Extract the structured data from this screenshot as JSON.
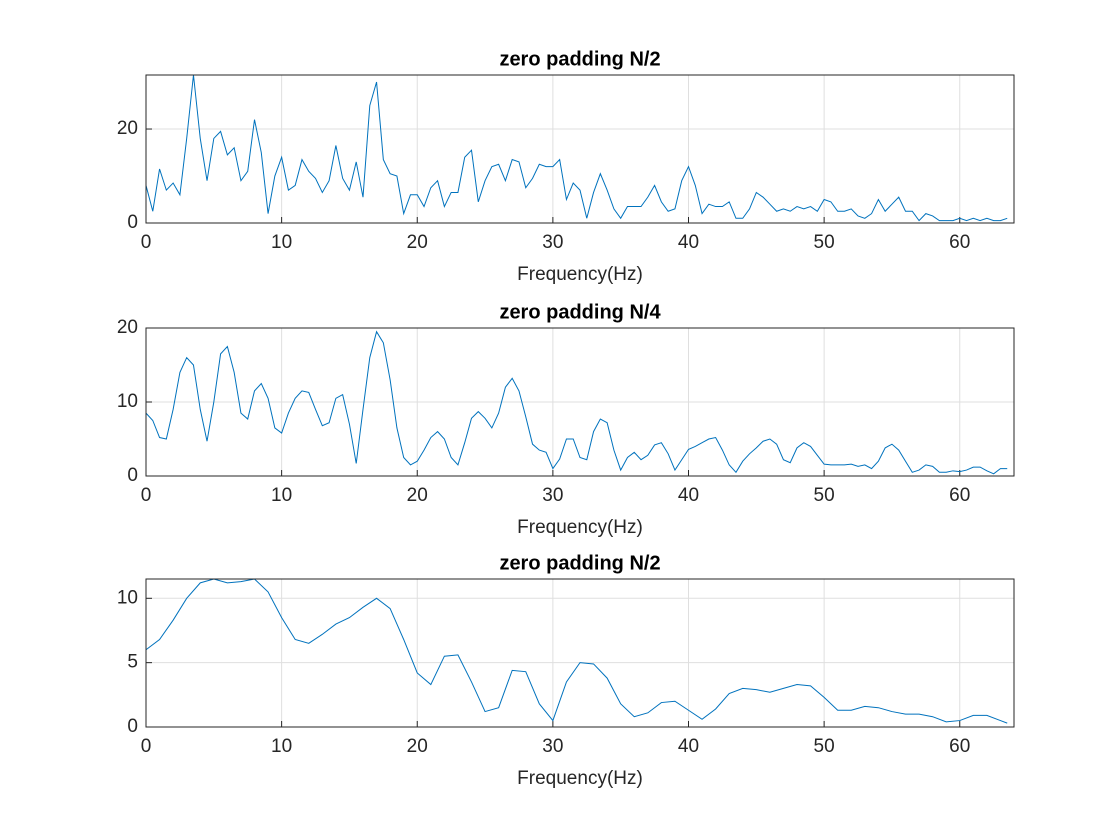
{
  "chart_data": [
    {
      "type": "line",
      "title": "zero padding N/2",
      "xlabel": "Frequency(Hz)",
      "xlim": [
        0,
        64
      ],
      "ylim": [
        0,
        31.5
      ],
      "xticks": [
        0,
        10,
        20,
        30,
        40,
        50,
        60
      ],
      "yticks": [
        0,
        20
      ],
      "grid": true,
      "x": [
        0,
        0.5,
        1,
        1.5,
        2,
        2.5,
        3,
        3.5,
        4,
        4.5,
        5,
        5.5,
        6,
        6.5,
        7,
        7.5,
        8,
        8.5,
        9,
        9.5,
        10,
        10.5,
        11,
        11.5,
        12,
        12.5,
        13,
        13.5,
        14,
        14.5,
        15,
        15.5,
        16,
        16.5,
        17,
        17.5,
        18,
        18.5,
        19,
        19.5,
        20,
        20.5,
        21,
        21.5,
        22,
        22.5,
        23,
        23.5,
        24,
        24.5,
        25,
        25.5,
        26,
        26.5,
        27,
        27.5,
        28,
        28.5,
        29,
        29.5,
        30,
        30.5,
        31,
        31.5,
        32,
        32.5,
        33,
        33.5,
        34,
        34.5,
        35,
        35.5,
        36,
        36.5,
        37,
        37.5,
        38,
        38.5,
        39,
        39.5,
        40,
        40.5,
        41,
        41.5,
        42,
        42.5,
        43,
        43.5,
        44,
        44.5,
        45,
        45.5,
        46,
        46.5,
        47,
        47.5,
        48,
        48.5,
        49,
        49.5,
        50,
        50.5,
        51,
        51.5,
        52,
        52.5,
        53,
        53.5,
        54,
        54.5,
        55,
        55.5,
        56,
        56.5,
        57,
        57.5,
        58,
        58.5,
        59,
        59.5,
        60,
        60.5,
        61,
        61.5,
        62,
        62.5,
        63,
        63.5
      ],
      "series": [
        {
          "color": "#0072bd",
          "values": [
            8,
            2.5,
            11.5,
            7,
            8.5,
            6,
            18,
            31.5,
            18,
            9,
            18,
            19.5,
            14.5,
            16,
            9,
            11,
            22,
            15,
            2,
            10,
            14,
            7,
            8,
            13.5,
            11,
            9.5,
            6.5,
            9,
            16.5,
            9.5,
            7,
            13,
            5.5,
            25,
            30,
            13.5,
            10.5,
            10,
            2,
            6,
            6,
            3.5,
            7.5,
            9,
            3.5,
            6.5,
            6.5,
            14,
            15.5,
            4.5,
            9,
            12,
            12.5,
            9,
            13.5,
            13,
            7.5,
            9.5,
            12.5,
            12,
            12,
            13.5,
            5,
            8.5,
            7,
            1,
            6.5,
            10.5,
            7,
            3,
            1,
            3.5,
            3.5,
            3.5,
            5.5,
            8,
            4.5,
            2.5,
            3,
            9,
            12,
            8,
            2,
            4,
            3.5,
            3.5,
            4.5,
            1,
            1,
            3,
            6.5,
            5.5,
            4,
            2.5,
            3,
            2.5,
            3.5,
            3,
            3.5,
            2.5,
            5,
            4.5,
            2.5,
            2.5,
            3,
            1.5,
            1,
            2,
            5,
            2.5,
            4,
            5.5,
            2.5,
            2.5,
            0.5,
            2,
            1.5,
            0.5,
            0.5,
            0.5,
            1,
            0.5,
            1,
            0.5,
            1,
            0.5,
            0.5,
            1
          ]
        }
      ]
    },
    {
      "type": "line",
      "title": "zero padding N/4",
      "xlabel": "Frequency(Hz)",
      "xlim": [
        0,
        64
      ],
      "ylim": [
        0,
        20
      ],
      "xticks": [
        0,
        10,
        20,
        30,
        40,
        50,
        60
      ],
      "yticks": [
        0,
        10,
        20
      ],
      "grid": true,
      "x": [
        0,
        0.5,
        1,
        1.5,
        2,
        2.5,
        3,
        3.5,
        4,
        4.5,
        5,
        5.5,
        6,
        6.5,
        7,
        7.5,
        8,
        8.5,
        9,
        9.5,
        10,
        10.5,
        11,
        11.5,
        12,
        12.5,
        13,
        13.5,
        14,
        14.5,
        15,
        15.5,
        16,
        16.5,
        17,
        17.5,
        18,
        18.5,
        19,
        19.5,
        20,
        20.5,
        21,
        21.5,
        22,
        22.5,
        23,
        23.5,
        24,
        24.5,
        25,
        25.5,
        26,
        26.5,
        27,
        27.5,
        28,
        28.5,
        29,
        29.5,
        30,
        30.5,
        31,
        31.5,
        32,
        32.5,
        33,
        33.5,
        34,
        34.5,
        35,
        35.5,
        36,
        36.5,
        37,
        37.5,
        38,
        38.5,
        39,
        39.5,
        40,
        40.5,
        41,
        41.5,
        42,
        42.5,
        43,
        43.5,
        44,
        44.5,
        45,
        45.5,
        46,
        46.5,
        47,
        47.5,
        48,
        48.5,
        49,
        49.5,
        50,
        50.5,
        51,
        51.5,
        52,
        52.5,
        53,
        53.5,
        54,
        54.5,
        55,
        55.5,
        56,
        56.5,
        57,
        57.5,
        58,
        58.5,
        59,
        59.5,
        60,
        60.5,
        61,
        61.5,
        62,
        62.5,
        63,
        63.5
      ],
      "series": [
        {
          "color": "#0072bd",
          "values": [
            8.5,
            7.5,
            5.2,
            5,
            9,
            14,
            16,
            15,
            9,
            4.7,
            10,
            16.5,
            17.5,
            14,
            8.5,
            7.7,
            11.5,
            12.5,
            10.5,
            6.5,
            5.8,
            8.5,
            10.5,
            11.5,
            11.3,
            9,
            6.8,
            7.2,
            10.5,
            11,
            7,
            1.7,
            9,
            16,
            19.5,
            18,
            13,
            6.5,
            2.5,
            1.5,
            2,
            3.5,
            5.2,
            6,
            5,
            2.5,
            1.5,
            4.5,
            7.8,
            8.7,
            7.8,
            6.5,
            8.5,
            12,
            13.2,
            11.5,
            8,
            4.3,
            3.5,
            3.2,
            1,
            2.3,
            5,
            5,
            2.5,
            2.2,
            6,
            7.7,
            7.2,
            3.5,
            0.8,
            2.5,
            3.2,
            2.2,
            2.8,
            4.2,
            4.5,
            3,
            0.8,
            2.2,
            3.6,
            4,
            4.5,
            5,
            5.2,
            3.5,
            1.5,
            0.5,
            2,
            3,
            3.8,
            4.7,
            5,
            4.3,
            2.2,
            1.8,
            3.8,
            4.5,
            4,
            2.8,
            1.6,
            1.5,
            1.5,
            1.5,
            1.6,
            1.3,
            1.5,
            1,
            2,
            3.8,
            4.3,
            3.5,
            2,
            0.5,
            0.8,
            1.5,
            1.3,
            0.5,
            0.5,
            0.7,
            0.6,
            0.8,
            1.2,
            1.2,
            0.7,
            0.3,
            1,
            1
          ]
        }
      ]
    },
    {
      "type": "line",
      "title": "zero padding N/2",
      "xlabel": "Frequency(Hz)",
      "xlim": [
        0,
        64
      ],
      "ylim": [
        0,
        11.5
      ],
      "xticks": [
        0,
        10,
        20,
        30,
        40,
        50,
        60
      ],
      "yticks": [
        0,
        5,
        10
      ],
      "grid": true,
      "x": [
        0,
        1,
        2,
        3,
        4,
        5,
        6,
        7,
        8,
        9,
        10,
        11,
        12,
        13,
        14,
        15,
        16,
        17,
        18,
        19,
        20,
        21,
        22,
        23,
        24,
        25,
        26,
        27,
        28,
        29,
        30,
        31,
        32,
        33,
        34,
        35,
        36,
        37,
        38,
        39,
        40,
        41,
        42,
        43,
        44,
        45,
        46,
        47,
        48,
        49,
        50,
        51,
        52,
        53,
        54,
        55,
        56,
        57,
        58,
        59,
        60,
        61,
        62,
        63,
        63.5
      ],
      "series": [
        {
          "color": "#0072bd",
          "values": [
            6,
            6.8,
            8.3,
            10,
            11.2,
            11.5,
            11.2,
            11.3,
            11.5,
            10.5,
            8.5,
            6.8,
            6.5,
            7.2,
            8,
            8.5,
            9.3,
            10,
            9.2,
            6.8,
            4.2,
            3.3,
            5.5,
            5.6,
            3.5,
            1.2,
            1.5,
            4.4,
            4.3,
            1.8,
            0.5,
            3.5,
            5,
            4.9,
            3.8,
            1.8,
            0.8,
            1.1,
            1.9,
            2,
            1.3,
            0.6,
            1.4,
            2.6,
            3,
            2.9,
            2.7,
            3,
            3.3,
            3.2,
            2.3,
            1.3,
            1.3,
            1.6,
            1.5,
            1.2,
            1,
            1,
            0.8,
            0.4,
            0.5,
            0.9,
            0.9,
            0.5,
            0.3
          ]
        }
      ]
    }
  ]
}
